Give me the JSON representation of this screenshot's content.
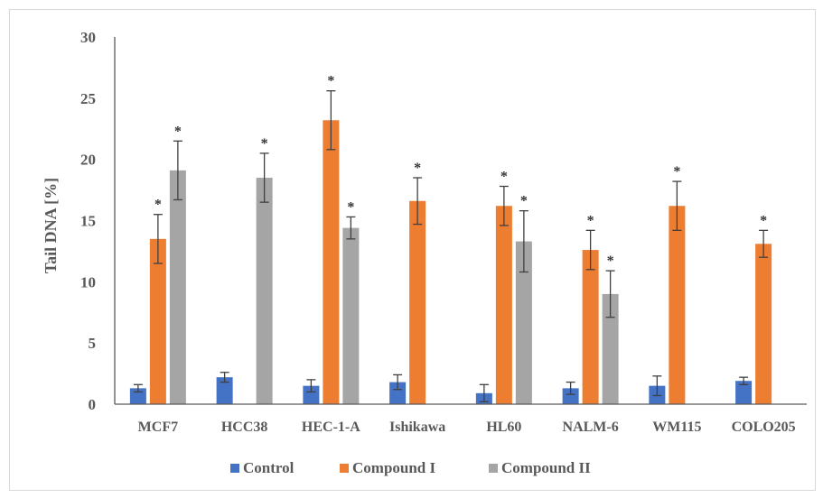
{
  "colors": {
    "control": "#4472c4",
    "compound_i": "#ed7d31",
    "compound_ii": "#a5a5a5",
    "axis": "#595959",
    "error": "#404040"
  },
  "chart_data": {
    "type": "bar",
    "title": "",
    "xlabel": "",
    "ylabel": "Tail DNA  [%]",
    "ylim": [
      0,
      30
    ],
    "yticks": [
      0,
      5,
      10,
      15,
      20,
      25,
      30
    ],
    "grid": false,
    "legend_position": "bottom",
    "significance_marker": "*",
    "categories": [
      "MCF7",
      "HCC38",
      "HEC-1-A",
      "Ishikawa",
      "HL60",
      "NALM-6",
      "WM115",
      "COLO205"
    ],
    "series": [
      {
        "name": "Control",
        "values": [
          1.3,
          2.2,
          1.5,
          1.8,
          0.9,
          1.3,
          1.5,
          1.9
        ],
        "errors": [
          0.3,
          0.4,
          0.5,
          0.6,
          0.7,
          0.5,
          0.8,
          0.3
        ],
        "significant": [
          false,
          false,
          false,
          false,
          false,
          false,
          false,
          false
        ]
      },
      {
        "name": "Compound I",
        "values": [
          13.5,
          null,
          23.2,
          16.6,
          16.2,
          12.6,
          16.2,
          13.1
        ],
        "errors": [
          2.0,
          null,
          2.4,
          1.9,
          1.6,
          1.6,
          2.0,
          1.1
        ],
        "significant": [
          true,
          false,
          true,
          true,
          true,
          true,
          true,
          true
        ]
      },
      {
        "name": "Compound II",
        "values": [
          19.1,
          18.5,
          14.4,
          null,
          13.3,
          9.0,
          null,
          null
        ],
        "errors": [
          2.4,
          2.0,
          0.9,
          null,
          2.5,
          1.9,
          null,
          null
        ],
        "significant": [
          true,
          true,
          true,
          false,
          true,
          true,
          false,
          false
        ]
      }
    ]
  }
}
